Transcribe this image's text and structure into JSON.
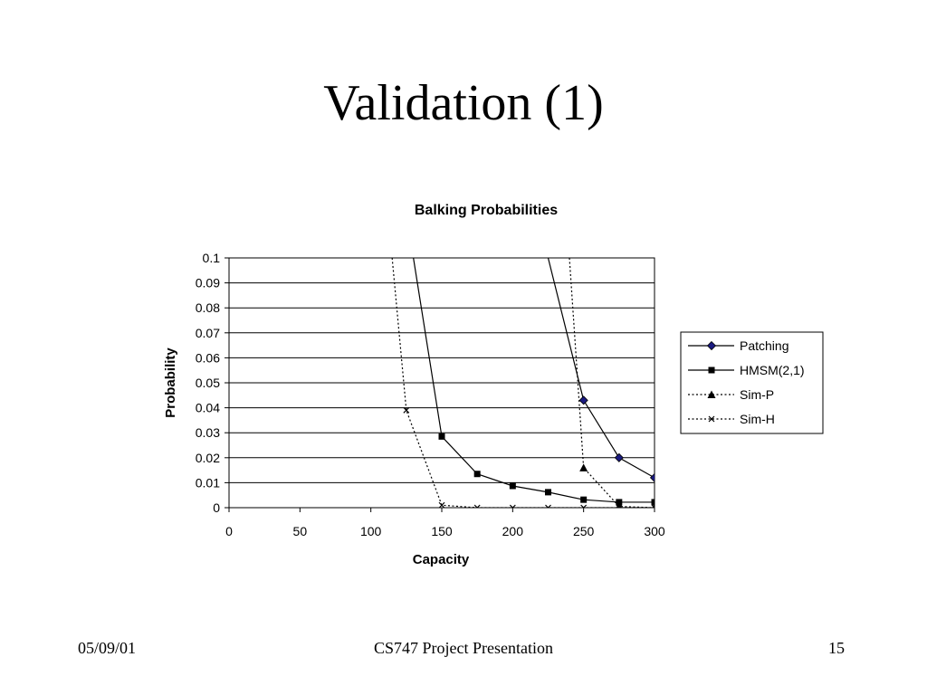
{
  "slide": {
    "title": "Validation (1)",
    "footer_left": "05/09/01",
    "footer_center": "CS747 Project Presentation",
    "footer_right": "15"
  },
  "chart_data": {
    "type": "line",
    "title": "Balking Probabilities",
    "xlabel": "Capacity",
    "ylabel": "Probability",
    "xlim": [
      0,
      300
    ],
    "ylim": [
      0,
      0.1
    ],
    "x_ticks": [
      "0",
      "50",
      "100",
      "150",
      "200",
      "250",
      "300"
    ],
    "y_ticks": [
      "0",
      "0.01",
      "0.02",
      "0.03",
      "0.04",
      "0.05",
      "0.06",
      "0.07",
      "0.08",
      "0.09",
      "0.1"
    ],
    "grid": "horizontal",
    "legend_position": "right",
    "series": [
      {
        "name": "Patching",
        "line": "solid",
        "marker": "diamond",
        "marker_color": "#1a1a80",
        "x": [
          225,
          250,
          275,
          300
        ],
        "y": [
          0.1,
          0.043,
          0.02,
          0.012
        ],
        "marked": [
          false,
          true,
          true,
          true
        ]
      },
      {
        "name": "HMSM(2,1)",
        "line": "solid",
        "marker": "square",
        "marker_color": "#000000",
        "x": [
          130,
          150,
          175,
          200,
          225,
          250,
          275,
          300
        ],
        "y": [
          0.1,
          0.0285,
          0.0135,
          0.0087,
          0.0062,
          0.0032,
          0.0022,
          0.0022
        ],
        "marked": [
          false,
          true,
          true,
          true,
          true,
          true,
          true,
          true
        ]
      },
      {
        "name": "Sim-P",
        "line": "dotted",
        "marker": "triangle",
        "marker_color": "#000000",
        "x": [
          240,
          250,
          275,
          300
        ],
        "y": [
          0.1,
          0.016,
          0.0005,
          0.0
        ],
        "marked": [
          false,
          true,
          true,
          true
        ]
      },
      {
        "name": "Sim-H",
        "line": "dotted",
        "marker": "x",
        "marker_color": "#000000",
        "x": [
          115,
          125,
          150,
          175,
          200,
          225,
          250,
          275,
          300
        ],
        "y": [
          0.1,
          0.039,
          0.001,
          0.0,
          0.0,
          0.0,
          0.0,
          0.0,
          0.0
        ],
        "marked": [
          false,
          true,
          true,
          true,
          true,
          true,
          true,
          true,
          true
        ]
      }
    ]
  }
}
